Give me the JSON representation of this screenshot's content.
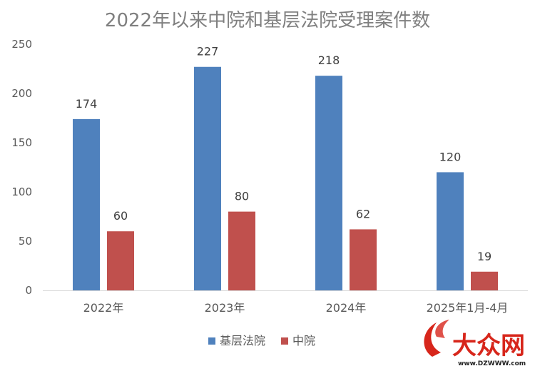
{
  "chart_data": {
    "type": "bar",
    "title": "2022年以来中院和基层法院受理案件数",
    "categories": [
      "2022年",
      "2023年",
      "2024年",
      "2025年1月-4月"
    ],
    "series": [
      {
        "name": "基层法院",
        "values": [
          174,
          227,
          218,
          120
        ],
        "color": "#4f81bd"
      },
      {
        "name": "中院",
        "values": [
          60,
          80,
          62,
          19
        ],
        "color": "#c0504d"
      }
    ],
    "ylim": [
      0,
      250
    ],
    "yticks": [
      0,
      50,
      100,
      150,
      200,
      250
    ],
    "grid": false,
    "legend_position": "bottom"
  },
  "watermark": {
    "logo_text": "大众网",
    "url": "www.DZWWW.com",
    "color": "#d7261b"
  }
}
